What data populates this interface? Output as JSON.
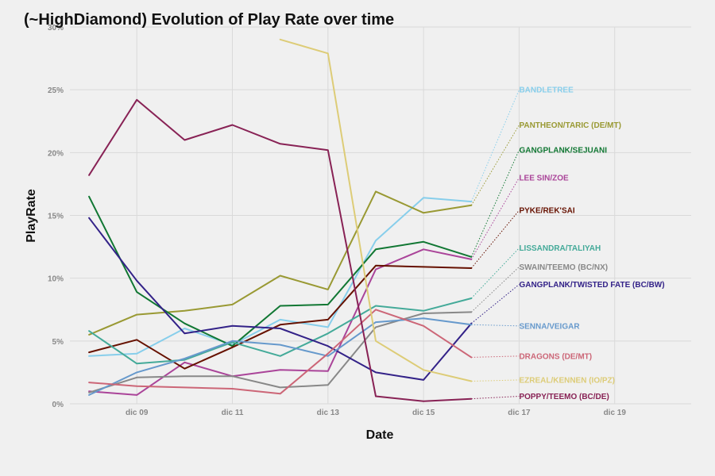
{
  "chart_data": {
    "type": "line",
    "title": "(~HighDiamond) Evolution of Play Rate over time",
    "xlabel": "Date",
    "ylabel": "PlayRate",
    "x": [
      "dic 08",
      "dic 09",
      "dic 10",
      "dic 11",
      "dic 12",
      "dic 13",
      "dic 14",
      "dic 15",
      "dic 16"
    ],
    "x_ticks": [
      "dic 09",
      "dic 11",
      "dic 13",
      "dic 15",
      "dic 17",
      "dic 19"
    ],
    "x_range": [
      "dic 07.6",
      "dic 20.6"
    ],
    "y_ticks": [
      "0%",
      "5%",
      "10%",
      "15%",
      "20%",
      "25%",
      "30%"
    ],
    "ylim": [
      0,
      30
    ],
    "grid": true,
    "legend": "direct labels at right, connected by dotted lines",
    "series": [
      {
        "name": "BANDLETREE",
        "color": "#87ceeb",
        "label_y": 25.0,
        "values": [
          3.8,
          4.0,
          6.0,
          4.7,
          6.7,
          6.1,
          13.0,
          16.4,
          16.1
        ]
      },
      {
        "name": "PANTHEON/TARIC (DE/MT)",
        "color": "#999933",
        "label_y": 22.2,
        "values": [
          5.5,
          7.1,
          7.4,
          7.9,
          10.2,
          9.1,
          16.9,
          15.2,
          15.8
        ]
      },
      {
        "name": "GANGPLANK/SEJUANI",
        "color": "#117733",
        "label_y": 20.2,
        "values": [
          16.5,
          8.9,
          6.4,
          4.6,
          7.8,
          7.9,
          12.3,
          12.9,
          11.7
        ]
      },
      {
        "name": "LEE SIN/ZOE",
        "color": "#aa4499",
        "label_y": 18.0,
        "values": [
          1.0,
          0.7,
          3.3,
          2.2,
          2.7,
          2.6,
          10.7,
          12.3,
          11.5
        ]
      },
      {
        "name": "PYKE/REK'SAI",
        "color": "#661100",
        "label_y": 15.4,
        "values": [
          4.1,
          5.1,
          2.8,
          4.5,
          6.3,
          6.7,
          11.0,
          10.9,
          10.8
        ]
      },
      {
        "name": "LISSANDRA/TALIYAH",
        "color": "#44aa99",
        "label_y": 12.4,
        "values": [
          5.8,
          3.2,
          3.5,
          4.9,
          3.8,
          5.6,
          7.8,
          7.4,
          8.4
        ]
      },
      {
        "name": "SWAIN/TEEMO (BC/NX)",
        "color": "#888888",
        "label_y": 10.9,
        "values": [
          0.9,
          2.1,
          2.2,
          2.2,
          1.3,
          1.5,
          6.1,
          7.2,
          7.3
        ]
      },
      {
        "name": "GANGPLANK/TWISTED FATE (BC/BW)",
        "color": "#332288",
        "label_y": 9.5,
        "values": [
          14.8,
          9.8,
          5.6,
          6.2,
          6.0,
          4.6,
          2.5,
          1.9,
          6.4
        ]
      },
      {
        "name": "SENNA/VEIGAR",
        "color": "#6699cc",
        "label_y": 6.2,
        "values": [
          0.7,
          2.5,
          3.6,
          5.0,
          4.7,
          3.8,
          6.5,
          6.8,
          6.3
        ]
      },
      {
        "name": "DRAGONS (DE/MT)",
        "color": "#cc6677",
        "label_y": 3.8,
        "values": [
          1.7,
          1.4,
          1.3,
          1.2,
          0.8,
          4.0,
          7.5,
          6.2,
          3.7
        ]
      },
      {
        "name": "EZREAL/KENNEN (IO/PZ)",
        "color": "#ddcc77",
        "label_y": 1.9,
        "values": [
          null,
          null,
          null,
          null,
          29.0,
          27.9,
          5.0,
          2.7,
          1.8
        ]
      },
      {
        "name": "POPPY/TEEMO (BC/DE)",
        "color": "#882255",
        "label_y": 0.6,
        "values": [
          18.2,
          24.2,
          21.0,
          22.2,
          20.7,
          20.2,
          0.6,
          0.2,
          0.4
        ]
      }
    ]
  }
}
